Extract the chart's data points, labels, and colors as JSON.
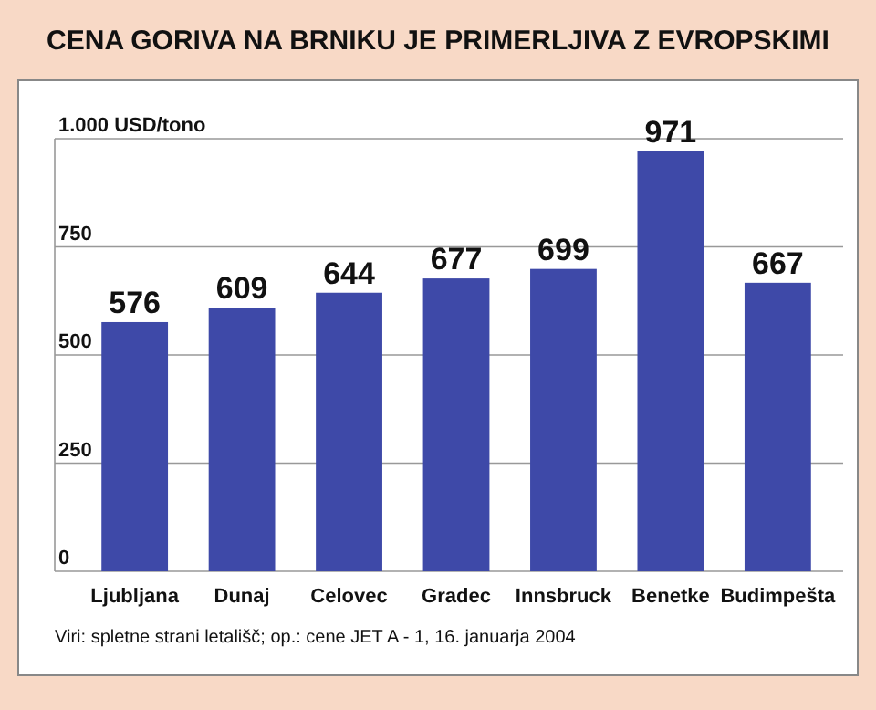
{
  "chart_data": {
    "type": "bar",
    "title": "CENA GORIVA NA BRNIKU JE PRIMERLJIVA Z EVROPSKIMI",
    "categories": [
      "Ljubljana",
      "Dunaj",
      "Celovec",
      "Gradec",
      "Innsbruck",
      "Benetke",
      "Budimpešta"
    ],
    "values": [
      576,
      609,
      644,
      677,
      699,
      971,
      667
    ],
    "color": "#3e49a8",
    "ylim": [
      0,
      1000
    ],
    "yticks": [
      0,
      250,
      500,
      750,
      {
        "value": 1000,
        "label": "1.000 USD/tono"
      }
    ],
    "grid": "y",
    "data_labels": true,
    "annotations": [
      "Viri: spletne strani letališč; op.: cene JET A - 1, 16. januarja 2004"
    ]
  }
}
